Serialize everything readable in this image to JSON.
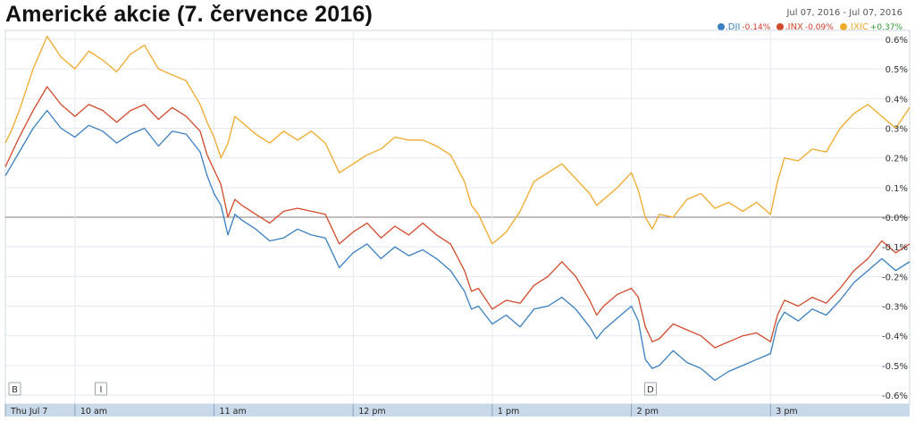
{
  "header": {
    "title": "Americké akcie (7. července 2016)",
    "date_range": "Jul 07, 2016 - Jul 07, 2016"
  },
  "legend": [
    {
      "symbol": ".DJI",
      "change": "-0.14%",
      "color": "#3a7fc1",
      "change_color": "#d23a2a"
    },
    {
      "symbol": ".INX",
      "change": "-0.09%",
      "color": "#d2492b",
      "change_color": "#d23a2a"
    },
    {
      "symbol": ".IXIC",
      "change": "+0.37%",
      "color": "#f0a92b",
      "change_color": "#2f9a2f"
    }
  ],
  "markers": [
    {
      "label": "B",
      "time": 9.5
    },
    {
      "label": "I",
      "time": 10.12
    },
    {
      "label": "D",
      "time": 14.07
    }
  ],
  "chart_data": {
    "type": "line",
    "title": "Americké akcie (7. července 2016)",
    "xlabel": "",
    "ylabel": "",
    "x_tick_labels": [
      "Thu Jul 7",
      "10 am",
      "11 am",
      "12 pm",
      "1 pm",
      "2 pm",
      "3 pm"
    ],
    "x_tick_times": [
      9.5,
      10.0,
      11.0,
      12.0,
      13.0,
      14.0,
      15.0
    ],
    "xlim": [
      9.5,
      16.0
    ],
    "y_tick_labels": [
      "0.6%",
      "0.5%",
      "0.4%",
      "0.3%",
      "0.2%",
      "0.1%",
      "-0.0%",
      "-0.1%",
      "-0.2%",
      "-0.3%",
      "-0.4%",
      "-0.5%",
      "-0.6%"
    ],
    "y_ticks": [
      0.6,
      0.5,
      0.4,
      0.3,
      0.2,
      0.1,
      0.0,
      -0.1,
      -0.2,
      -0.3,
      -0.4,
      -0.5,
      -0.6
    ],
    "ylim": [
      -0.63,
      0.63
    ],
    "grid": true,
    "legend_position": "top-right",
    "series": [
      {
        "name": ".DJI",
        "color": "#3a7fc1",
        "points": [
          [
            9.5,
            0.14
          ],
          [
            9.55,
            0.18
          ],
          [
            9.6,
            0.22
          ],
          [
            9.7,
            0.3
          ],
          [
            9.8,
            0.36
          ],
          [
            9.9,
            0.3
          ],
          [
            10.0,
            0.27
          ],
          [
            10.1,
            0.31
          ],
          [
            10.2,
            0.29
          ],
          [
            10.3,
            0.25
          ],
          [
            10.4,
            0.28
          ],
          [
            10.5,
            0.3
          ],
          [
            10.6,
            0.24
          ],
          [
            10.7,
            0.29
          ],
          [
            10.8,
            0.28
          ],
          [
            10.9,
            0.22
          ],
          [
            10.95,
            0.14
          ],
          [
            11.0,
            0.08
          ],
          [
            11.05,
            0.04
          ],
          [
            11.1,
            -0.06
          ],
          [
            11.15,
            0.01
          ],
          [
            11.2,
            -0.01
          ],
          [
            11.3,
            -0.04
          ],
          [
            11.4,
            -0.08
          ],
          [
            11.5,
            -0.07
          ],
          [
            11.6,
            -0.04
          ],
          [
            11.7,
            -0.06
          ],
          [
            11.8,
            -0.07
          ],
          [
            11.9,
            -0.17
          ],
          [
            12.0,
            -0.12
          ],
          [
            12.1,
            -0.09
          ],
          [
            12.2,
            -0.14
          ],
          [
            12.3,
            -0.1
          ],
          [
            12.4,
            -0.13
          ],
          [
            12.5,
            -0.11
          ],
          [
            12.6,
            -0.14
          ],
          [
            12.7,
            -0.18
          ],
          [
            12.8,
            -0.25
          ],
          [
            12.85,
            -0.31
          ],
          [
            12.9,
            -0.3
          ],
          [
            13.0,
            -0.36
          ],
          [
            13.1,
            -0.33
          ],
          [
            13.2,
            -0.37
          ],
          [
            13.3,
            -0.31
          ],
          [
            13.4,
            -0.3
          ],
          [
            13.5,
            -0.27
          ],
          [
            13.6,
            -0.31
          ],
          [
            13.7,
            -0.37
          ],
          [
            13.75,
            -0.41
          ],
          [
            13.8,
            -0.38
          ],
          [
            13.9,
            -0.34
          ],
          [
            14.0,
            -0.3
          ],
          [
            14.05,
            -0.35
          ],
          [
            14.1,
            -0.48
          ],
          [
            14.15,
            -0.51
          ],
          [
            14.2,
            -0.5
          ],
          [
            14.3,
            -0.45
          ],
          [
            14.4,
            -0.49
          ],
          [
            14.5,
            -0.51
          ],
          [
            14.6,
            -0.55
          ],
          [
            14.7,
            -0.52
          ],
          [
            14.8,
            -0.5
          ],
          [
            14.9,
            -0.48
          ],
          [
            15.0,
            -0.46
          ],
          [
            15.05,
            -0.36
          ],
          [
            15.1,
            -0.32
          ],
          [
            15.2,
            -0.35
          ],
          [
            15.3,
            -0.31
          ],
          [
            15.4,
            -0.33
          ],
          [
            15.5,
            -0.28
          ],
          [
            15.6,
            -0.22
          ],
          [
            15.7,
            -0.18
          ],
          [
            15.8,
            -0.14
          ],
          [
            15.9,
            -0.18
          ],
          [
            16.0,
            -0.15
          ]
        ]
      },
      {
        "name": ".INX",
        "color": "#d2492b",
        "points": [
          [
            9.5,
            0.17
          ],
          [
            9.55,
            0.22
          ],
          [
            9.6,
            0.27
          ],
          [
            9.7,
            0.36
          ],
          [
            9.8,
            0.44
          ],
          [
            9.9,
            0.38
          ],
          [
            10.0,
            0.34
          ],
          [
            10.1,
            0.38
          ],
          [
            10.2,
            0.36
          ],
          [
            10.3,
            0.32
          ],
          [
            10.4,
            0.36
          ],
          [
            10.5,
            0.38
          ],
          [
            10.6,
            0.33
          ],
          [
            10.7,
            0.37
          ],
          [
            10.8,
            0.34
          ],
          [
            10.9,
            0.29
          ],
          [
            10.95,
            0.21
          ],
          [
            11.0,
            0.16
          ],
          [
            11.05,
            0.11
          ],
          [
            11.1,
            0.0
          ],
          [
            11.15,
            0.06
          ],
          [
            11.2,
            0.04
          ],
          [
            11.3,
            0.01
          ],
          [
            11.4,
            -0.02
          ],
          [
            11.5,
            0.02
          ],
          [
            11.6,
            0.03
          ],
          [
            11.7,
            0.02
          ],
          [
            11.8,
            0.01
          ],
          [
            11.9,
            -0.09
          ],
          [
            12.0,
            -0.05
          ],
          [
            12.1,
            -0.02
          ],
          [
            12.2,
            -0.07
          ],
          [
            12.3,
            -0.03
          ],
          [
            12.4,
            -0.06
          ],
          [
            12.5,
            -0.02
          ],
          [
            12.6,
            -0.06
          ],
          [
            12.7,
            -0.09
          ],
          [
            12.8,
            -0.18
          ],
          [
            12.85,
            -0.25
          ],
          [
            12.9,
            -0.24
          ],
          [
            13.0,
            -0.31
          ],
          [
            13.1,
            -0.28
          ],
          [
            13.2,
            -0.29
          ],
          [
            13.3,
            -0.23
          ],
          [
            13.4,
            -0.2
          ],
          [
            13.5,
            -0.15
          ],
          [
            13.6,
            -0.2
          ],
          [
            13.7,
            -0.28
          ],
          [
            13.75,
            -0.33
          ],
          [
            13.8,
            -0.3
          ],
          [
            13.9,
            -0.26
          ],
          [
            14.0,
            -0.24
          ],
          [
            14.05,
            -0.27
          ],
          [
            14.1,
            -0.37
          ],
          [
            14.15,
            -0.42
          ],
          [
            14.2,
            -0.41
          ],
          [
            14.3,
            -0.36
          ],
          [
            14.4,
            -0.38
          ],
          [
            14.5,
            -0.4
          ],
          [
            14.6,
            -0.44
          ],
          [
            14.7,
            -0.42
          ],
          [
            14.8,
            -0.4
          ],
          [
            14.9,
            -0.39
          ],
          [
            15.0,
            -0.42
          ],
          [
            15.05,
            -0.33
          ],
          [
            15.1,
            -0.28
          ],
          [
            15.2,
            -0.3
          ],
          [
            15.3,
            -0.27
          ],
          [
            15.4,
            -0.29
          ],
          [
            15.5,
            -0.24
          ],
          [
            15.6,
            -0.18
          ],
          [
            15.7,
            -0.14
          ],
          [
            15.8,
            -0.08
          ],
          [
            15.9,
            -0.12
          ],
          [
            16.0,
            -0.09
          ]
        ]
      },
      {
        "name": ".IXIC",
        "color": "#f0a92b",
        "points": [
          [
            9.5,
            0.25
          ],
          [
            9.55,
            0.3
          ],
          [
            9.6,
            0.36
          ],
          [
            9.7,
            0.5
          ],
          [
            9.8,
            0.61
          ],
          [
            9.9,
            0.54
          ],
          [
            10.0,
            0.5
          ],
          [
            10.1,
            0.56
          ],
          [
            10.2,
            0.53
          ],
          [
            10.3,
            0.49
          ],
          [
            10.4,
            0.55
          ],
          [
            10.5,
            0.58
          ],
          [
            10.6,
            0.5
          ],
          [
            10.7,
            0.48
          ],
          [
            10.8,
            0.46
          ],
          [
            10.9,
            0.38
          ],
          [
            10.95,
            0.32
          ],
          [
            11.0,
            0.27
          ],
          [
            11.05,
            0.2
          ],
          [
            11.1,
            0.25
          ],
          [
            11.15,
            0.34
          ],
          [
            11.2,
            0.32
          ],
          [
            11.3,
            0.28
          ],
          [
            11.4,
            0.25
          ],
          [
            11.5,
            0.29
          ],
          [
            11.6,
            0.26
          ],
          [
            11.7,
            0.29
          ],
          [
            11.8,
            0.25
          ],
          [
            11.9,
            0.15
          ],
          [
            12.0,
            0.18
          ],
          [
            12.1,
            0.21
          ],
          [
            12.2,
            0.23
          ],
          [
            12.3,
            0.27
          ],
          [
            12.4,
            0.26
          ],
          [
            12.5,
            0.26
          ],
          [
            12.6,
            0.24
          ],
          [
            12.7,
            0.21
          ],
          [
            12.8,
            0.12
          ],
          [
            12.85,
            0.04
          ],
          [
            12.9,
            0.01
          ],
          [
            13.0,
            -0.09
          ],
          [
            13.1,
            -0.05
          ],
          [
            13.2,
            0.02
          ],
          [
            13.3,
            0.12
          ],
          [
            13.4,
            0.15
          ],
          [
            13.5,
            0.18
          ],
          [
            13.6,
            0.13
          ],
          [
            13.7,
            0.08
          ],
          [
            13.75,
            0.04
          ],
          [
            13.8,
            0.06
          ],
          [
            13.9,
            0.1
          ],
          [
            14.0,
            0.15
          ],
          [
            14.05,
            0.09
          ],
          [
            14.1,
            0.0
          ],
          [
            14.15,
            -0.04
          ],
          [
            14.2,
            0.01
          ],
          [
            14.3,
            0.0
          ],
          [
            14.4,
            0.06
          ],
          [
            14.5,
            0.08
          ],
          [
            14.6,
            0.03
          ],
          [
            14.7,
            0.05
          ],
          [
            14.8,
            0.02
          ],
          [
            14.9,
            0.05
          ],
          [
            15.0,
            0.01
          ],
          [
            15.05,
            0.12
          ],
          [
            15.1,
            0.2
          ],
          [
            15.2,
            0.19
          ],
          [
            15.3,
            0.23
          ],
          [
            15.4,
            0.22
          ],
          [
            15.5,
            0.3
          ],
          [
            15.6,
            0.35
          ],
          [
            15.7,
            0.38
          ],
          [
            15.8,
            0.34
          ],
          [
            15.9,
            0.3
          ],
          [
            16.0,
            0.37
          ]
        ]
      }
    ]
  }
}
